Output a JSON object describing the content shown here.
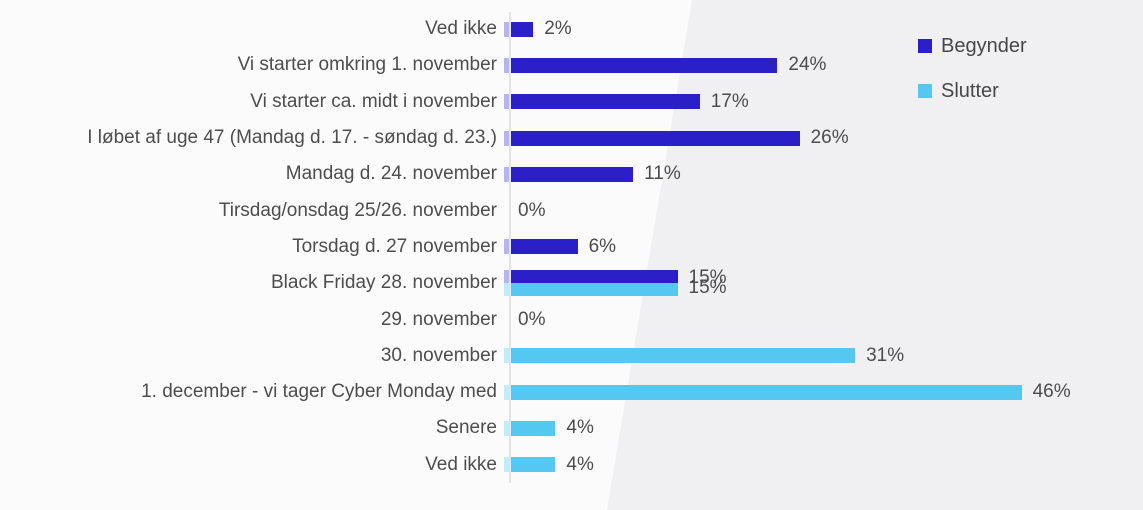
{
  "chart_data": {
    "type": "bar",
    "orientation": "horizontal",
    "title": "",
    "unit": "%",
    "value_labels": true,
    "legend_position": "top-right",
    "xlim": [
      0,
      46
    ],
    "categories": [
      "Ved ikke",
      "Vi starter omkring 1. november",
      "Vi starter ca. midt i november",
      "I løbet af uge 47 (Mandag d. 17. - søndag d. 23.)",
      "Mandag d. 24. november",
      "Tirsdag/onsdag 25/26. november",
      "Torsdag d. 27 november",
      "Black Friday 28. november",
      "29. november",
      "30. november",
      "1. december - vi tager Cyber Monday med",
      "Senere",
      "Ved ikke"
    ],
    "series": [
      {
        "name": "Begynder",
        "color": "#2B20C8",
        "values": [
          2,
          24,
          17,
          26,
          11,
          0,
          6,
          15,
          null,
          null,
          null,
          null,
          null
        ]
      },
      {
        "name": "Slutter",
        "color": "#55C8F2",
        "values": [
          null,
          null,
          null,
          null,
          null,
          null,
          null,
          15,
          0,
          31,
          46,
          4,
          4
        ]
      }
    ],
    "value_label_format": "{v}%"
  },
  "legend": {
    "items": [
      {
        "label": "Begynder",
        "color": "#2B20C8"
      },
      {
        "label": "Slutter",
        "color": "#55C8F2"
      }
    ]
  },
  "colors": {
    "background_left": "#fbfbfb",
    "background_right": "#f0f0f2",
    "axis_line": "#e3e3e7",
    "text": "#4d4d4d"
  }
}
